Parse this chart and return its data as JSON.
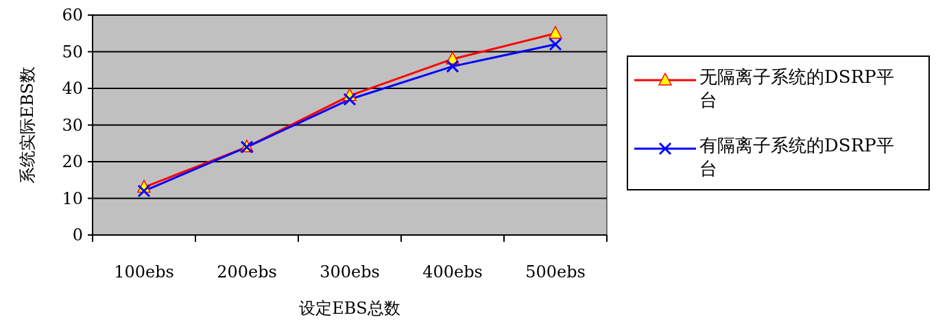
{
  "chart_data": {
    "type": "line",
    "xlabel": "设定EBS总数",
    "ylabel": "系统实际EBS数",
    "categories": [
      "100ebs",
      "200ebs",
      "300ebs",
      "400ebs",
      "500ebs"
    ],
    "series": [
      {
        "name": "无隔离子系统的DSRP平台",
        "color": "#ff0000",
        "marker": "triangle",
        "values": [
          13,
          24,
          38,
          48,
          55
        ]
      },
      {
        "name": "有隔离子系统的DSRP平台",
        "color": "#0000ff",
        "marker": "cross",
        "values": [
          12,
          24,
          37,
          46,
          52
        ]
      }
    ],
    "ylim": [
      0,
      60
    ],
    "yticks": [
      0,
      10,
      20,
      30,
      40,
      50,
      60
    ],
    "grid": "y",
    "legend": "right"
  }
}
